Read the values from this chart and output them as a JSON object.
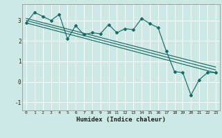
{
  "title": "",
  "xlabel": "Humidex (Indice chaleur)",
  "ylabel": "",
  "bg_color": "#cce9e5",
  "grid_color": "#ffffff",
  "line_color": "#1a6b65",
  "xlim": [
    -0.5,
    23.5
  ],
  "ylim": [
    -1.4,
    3.8
  ],
  "yticks": [
    -1,
    0,
    1,
    2,
    3
  ],
  "xticks": [
    0,
    1,
    2,
    3,
    4,
    5,
    6,
    7,
    8,
    9,
    10,
    11,
    12,
    13,
    14,
    15,
    16,
    17,
    18,
    19,
    20,
    21,
    22,
    23
  ],
  "series1_x": [
    0,
    1,
    2,
    3,
    4,
    5,
    6,
    7,
    8,
    9,
    10,
    11,
    12,
    13,
    14,
    15,
    16,
    17,
    18,
    19,
    20,
    21,
    22,
    23
  ],
  "series1_y": [
    2.9,
    3.4,
    3.2,
    3.0,
    3.3,
    2.1,
    2.75,
    2.3,
    2.4,
    2.35,
    2.8,
    2.4,
    2.6,
    2.55,
    3.1,
    2.85,
    2.65,
    1.5,
    0.5,
    0.45,
    -0.65,
    0.1,
    0.45,
    0.45
  ],
  "trend1_x": [
    0,
    23
  ],
  "trend1_y": [
    3.1,
    0.72
  ],
  "trend2_x": [
    0,
    23
  ],
  "trend2_y": [
    3.0,
    0.58
  ],
  "trend3_x": [
    0,
    23
  ],
  "trend3_y": [
    2.88,
    0.44
  ]
}
